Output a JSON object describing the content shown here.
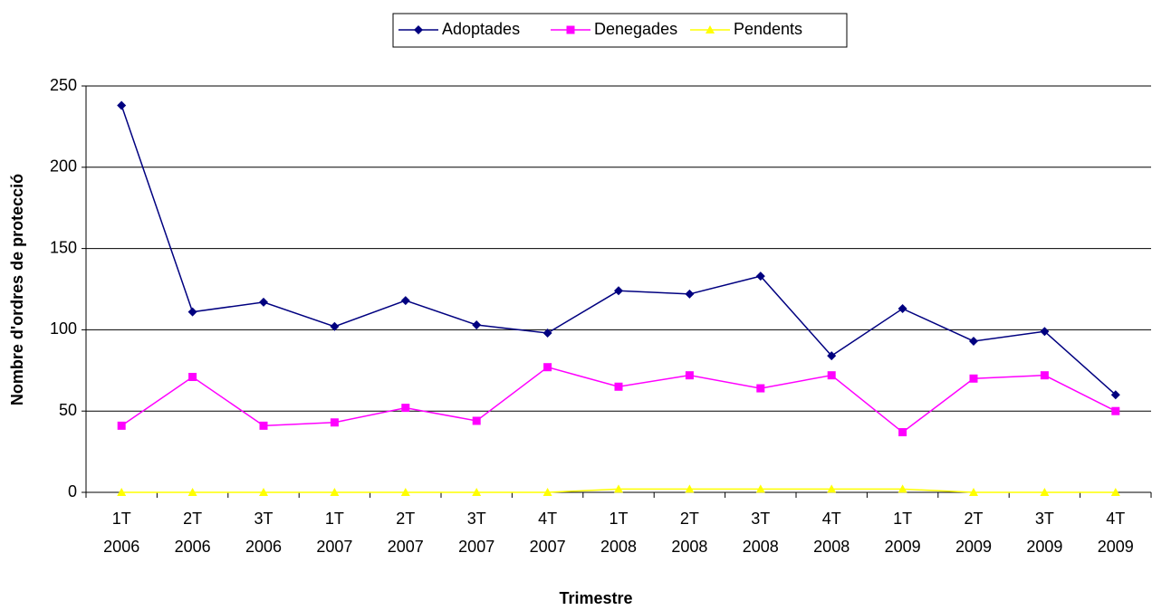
{
  "chart_data": {
    "type": "line",
    "x_label": "Trimestre",
    "y_label": "Nombre d'ordres de protecció",
    "categories": [
      [
        "1T",
        "2006"
      ],
      [
        "2T",
        "2006"
      ],
      [
        "3T",
        "2006"
      ],
      [
        "1T",
        "2007"
      ],
      [
        "2T",
        "2007"
      ],
      [
        "3T",
        "2007"
      ],
      [
        "4T",
        "2007"
      ],
      [
        "1T",
        "2008"
      ],
      [
        "2T",
        "2008"
      ],
      [
        "3T",
        "2008"
      ],
      [
        "4T",
        "2008"
      ],
      [
        "1T",
        "2009"
      ],
      [
        "2T",
        "2009"
      ],
      [
        "3T",
        "2009"
      ],
      [
        "4T",
        "2009"
      ]
    ],
    "series": [
      {
        "name": "Adoptades",
        "color": "#000080",
        "marker": "diamond",
        "values": [
          238,
          111,
          117,
          102,
          118,
          103,
          98,
          124,
          122,
          133,
          84,
          113,
          93,
          99,
          60
        ]
      },
      {
        "name": "Denegades",
        "color": "#ff00ff",
        "marker": "square",
        "values": [
          41,
          71,
          41,
          43,
          52,
          44,
          77,
          65,
          72,
          64,
          72,
          37,
          70,
          72,
          50
        ]
      },
      {
        "name": "Pendents",
        "color": "#ffff00",
        "marker": "triangle",
        "values": [
          0,
          0,
          0,
          0,
          0,
          0,
          0,
          2,
          2,
          2,
          2,
          2,
          0,
          0,
          0
        ]
      }
    ],
    "ylim": [
      0,
      250
    ],
    "yticks": [
      0,
      50,
      100,
      150,
      200,
      250
    ],
    "grid": true,
    "legend": "top"
  }
}
